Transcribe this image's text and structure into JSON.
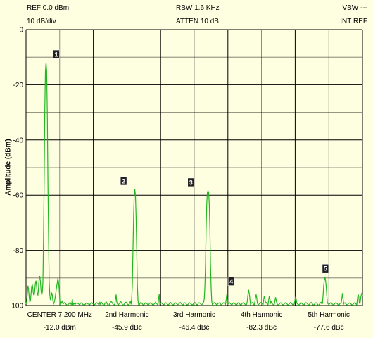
{
  "header": {
    "ref": "REF 0.0 dBm",
    "scale": "10 dB/div",
    "rbw": "RBW 1.6 KHz",
    "atten": "ATTEN 10 dB",
    "vbw": "VBW ---",
    "ref_mode": "INT REF"
  },
  "y_axis_label": "Amplitude (dBm)",
  "footer": [
    {
      "label": "CENTER 7.200 MHz",
      "value": "-12.0 dBm"
    },
    {
      "label": "2nd Harmonic",
      "value": "-45.9 dBc"
    },
    {
      "label": "3rd Harmonic",
      "value": "-46.4 dBc"
    },
    {
      "label": "4th Harmonic",
      "value": "-82.3 dBc"
    },
    {
      "label": "5th Harmonic",
      "value": "-77.6 dBc"
    }
  ],
  "colors": {
    "trace": "#22b722",
    "grid": "#000000",
    "background": "#fefee0",
    "marker_bg": "#222222",
    "marker_fg": "#ffffff"
  },
  "chart_data": {
    "type": "line",
    "ylabel": "Amplitude (dBm)",
    "ylim": [
      -100,
      0
    ],
    "yticks": [
      "0",
      "-20",
      "-40",
      "-60",
      "-80",
      "-100"
    ],
    "x_divisions": 10,
    "markers": [
      {
        "label": "1",
        "x_div": 0.9,
        "y": -12.0
      },
      {
        "label": "2",
        "x_div": 2.9,
        "y": -57.9
      },
      {
        "label": "3",
        "x_div": 4.9,
        "y": -58.4
      },
      {
        "label": "4",
        "x_div": 6.1,
        "y": -94.3
      },
      {
        "label": "5",
        "x_div": 8.9,
        "y": -89.6
      }
    ],
    "series": [
      {
        "values_dbm": [
          -99.5,
          -98.6,
          -95.9,
          -92.8,
          -93.8,
          -96.7,
          -98.7,
          -98.3,
          -95.8,
          -93.1,
          -92.4,
          -94.0,
          -96.0,
          -96.3,
          -94.4,
          -91.9,
          -91.0,
          -93.1,
          -96.1,
          -96.2,
          -93.4,
          -90.1,
          -89.3,
          -91.3,
          -94.4,
          -96.1,
          -95.2,
          -91.6,
          -75.0,
          -55.0,
          -30.0,
          -15.0,
          -12.0,
          -15.0,
          -30.0,
          -55.0,
          -75.0,
          -91.5,
          -96.0,
          -98.0,
          -96.9,
          -95.3,
          -96.2,
          -98.3,
          -99.4,
          -98.9,
          -97.8,
          -96.5,
          -94.7,
          -93.0,
          -91.7,
          -90.0,
          -91.5,
          -94.0,
          -98.0,
          -99.8,
          -99.3,
          -98.7,
          -98.6,
          -99.3,
          -99.3,
          -99.0,
          -98.9,
          -99.3,
          -99.5,
          -99.7,
          -99.9,
          -99.7,
          -99.5,
          -99.3,
          -99.0,
          -99.0,
          -99.5,
          -99.6,
          -97.5,
          -99.8,
          -99.4,
          -99.2,
          -99.6,
          -99.5,
          -99.1,
          -99.1,
          -99.3,
          -99.2,
          -99.4,
          -99.6,
          -99.7,
          -99.2,
          -99.0,
          -99.1,
          -99.3,
          -99.6,
          -99.8,
          -99.9,
          -99.6,
          -99.5,
          -99.1,
          -99.1,
          -99.2,
          -99.4,
          -99.5,
          -99.6,
          -99.7,
          -99.3,
          -99.1,
          -99.0,
          -99.1,
          -99.4,
          -99.6,
          -99.7,
          -99.6,
          -99.4,
          -99.1,
          -99.0,
          -99.1,
          -99.4,
          -99.5,
          -99.7,
          -98.7,
          -99.5,
          -99.2,
          -98.9,
          -99.3,
          -99.6,
          -99.8,
          -99.8,
          -99.3,
          -99.1,
          -98.6,
          -99.0,
          -99.4,
          -99.8,
          -99.9,
          -99.7,
          -99.2,
          -98.8,
          -98.6,
          -98.7,
          -99.1,
          -99.5,
          -99.8,
          -99.8,
          -99.5,
          -97.7,
          -96.0,
          -98.6,
          -99.3,
          -99.7,
          -99.7,
          -99.3,
          -99.0,
          -98.6,
          -98.7,
          -99.2,
          -99.5,
          -99.9,
          -99.8,
          -99.5,
          -99.1,
          -98.9,
          -98.8,
          -99.1,
          -99.5,
          -99.6,
          -99.8,
          -99.5,
          -99.1,
          -98.3,
          -99.6,
          -97.3,
          -92.4,
          -80.0,
          -68.0,
          -60.0,
          -57.9,
          -60.0,
          -68.0,
          -80.0,
          -92.5,
          -98.0,
          -99.7,
          -99.8,
          -99.4,
          -99.0,
          -98.9,
          -99.1,
          -99.4,
          -99.7,
          -99.8,
          -99.6,
          -99.3,
          -99.0,
          -99.0,
          -99.2,
          -99.5,
          -99.7,
          -99.7,
          -99.4,
          -99.1,
          -99.0,
          -99.1,
          -99.3,
          -99.6,
          -99.8,
          -99.7,
          -99.4,
          -99.2,
          -98.8,
          -99.2,
          -99.3,
          -99.6,
          -99.7,
          -97.6,
          -95.8,
          -99.6,
          -99.2,
          -99.0,
          -99.1,
          -99.4,
          -99.6,
          -99.7,
          -99.6,
          -99.3,
          -99.0,
          -99.0,
          -99.2,
          -99.5,
          -99.7,
          -99.7,
          -99.4,
          -99.1,
          -98.9,
          -99.1,
          -99.4,
          -99.6,
          -99.8,
          -99.7,
          -99.3,
          -99.0,
          -99.0,
          -99.1,
          -99.4,
          -99.6,
          -99.6,
          -99.5,
          -99.3,
          -99.0,
          -98.9,
          -99.2,
          -99.5,
          -99.7,
          -99.8,
          -99.5,
          -99.1,
          -99.0,
          -99.1,
          -99.4,
          -99.7,
          -99.8,
          -99.6,
          -99.3,
          -99.0,
          -99.0,
          -99.2,
          -99.5,
          -99.6,
          -99.8,
          -99.6,
          -99.2,
          -99.1,
          -98.9,
          -99.2,
          -99.4,
          -99.7,
          -99.7,
          -99.5,
          -99.1,
          -99.0,
          -99.1,
          -99.3,
          -99.6,
          -99.6,
          -99.5,
          -99.2,
          -98.8,
          -97.6,
          -93.3,
          -85.0,
          -72.0,
          -63.0,
          -59.0,
          -58.4,
          -59.0,
          -63.0,
          -72.0,
          -85.0,
          -93.5,
          -98.5,
          -99.7,
          -99.4,
          -99.1,
          -99.0,
          -98.9,
          -99.3,
          -99.5,
          -99.8,
          -99.6,
          -99.3,
          -99.1,
          -99.0,
          -99.2,
          -99.4,
          -99.8,
          -99.7,
          -99.4,
          -99.1,
          -99.0,
          -99.1,
          -99.4,
          -99.6,
          -98.0,
          -96.0,
          -97.5,
          -99.4,
          -99.1,
          -98.9,
          -99.1,
          -99.3,
          -99.6,
          -99.7,
          -99.5,
          -99.2,
          -99.0,
          -99.1,
          -99.3,
          -99.6,
          -99.6,
          -99.7,
          -99.4,
          -99.0,
          -99.0,
          -99.2,
          -99.5,
          -99.7,
          -99.8,
          -99.4,
          -99.1,
          -99.0,
          -99.0,
          -99.3,
          -99.5,
          -99.7,
          -99.7,
          -99.5,
          -98.0,
          -95.8,
          -94.3,
          -95.6,
          -97.6,
          -99.6,
          -99.3,
          -99.0,
          -98.9,
          -99.2,
          -99.6,
          -99.7,
          -98.6,
          -97.0,
          -96.0,
          -97.3,
          -99.2,
          -99.6,
          -99.6,
          -99.4,
          -99.2,
          -98.9,
          -99.0,
          -99.3,
          -99.5,
          -99.8,
          -98.0,
          -96.5,
          -97.4,
          -99.1,
          -98.9,
          -99.2,
          -99.5,
          -99.7,
          -98.0,
          -96.6,
          -97.6,
          -99.1,
          -98.6,
          -99.2,
          -99.4,
          -99.6,
          -99.8,
          -99.6,
          -98.4,
          -97.0,
          -98.0,
          -99.2,
          -99.5,
          -99.7,
          -99.8,
          -99.5,
          -99.2,
          -99.0,
          -99.1,
          -99.4,
          -99.6,
          -99.7,
          -99.7,
          -99.4,
          -99.1,
          -99.0,
          -99.1,
          -99.3,
          -99.6,
          -99.8,
          -99.7,
          -99.4,
          -99.1,
          -98.9,
          -99.0,
          -99.3,
          -99.6,
          -99.7,
          -99.7,
          -99.4,
          -98.2,
          -96.8,
          -97.6,
          -99.1,
          -99.4,
          -99.6,
          -99.8,
          -99.6,
          -99.4,
          -99.0,
          -99.0,
          -99.2,
          -99.5,
          -99.6,
          -99.8,
          -99.6,
          -99.2,
          -99.0,
          -99.0,
          -99.1,
          -99.4,
          -99.7,
          -99.8,
          -99.6,
          -99.3,
          -99.1,
          -98.9,
          -99.2,
          -99.4,
          -99.7,
          -99.8,
          -99.6,
          -99.3,
          -99.0,
          -99.0,
          -99.2,
          -99.5,
          -99.8,
          -99.9,
          -99.6,
          -99.3,
          -99.0,
          -98.8,
          -99.4,
          -99.3,
          -96.5,
          -93.0,
          -90.8,
          -89.6,
          -90.8,
          -93.0,
          -96.5,
          -99.0,
          -99.4,
          -99.6,
          -99.5,
          -99.2,
          -99.0,
          -99.1,
          -99.3,
          -99.5,
          -99.7,
          -99.8,
          -99.5,
          -99.2,
          -99.0,
          -99.0,
          -99.2,
          -99.4,
          -99.7,
          -99.8,
          -99.6,
          -99.3,
          -99.1,
          -99.0,
          -97.5,
          -95.5,
          -97.5,
          -99.4,
          -99.1,
          -99.0,
          -99.3,
          -99.5,
          -99.7,
          -99.8,
          -99.5,
          -99.2,
          -99.1,
          -99.0,
          -99.2,
          -99.5,
          -99.7,
          -99.8,
          -99.5,
          -99.3,
          -99.0,
          -99.0,
          -99.2,
          -99.5,
          -99.7,
          -97.5,
          -96.0,
          -96.5,
          -99.0,
          -99.4,
          -97.6,
          -96.2,
          -95.5,
          -96.5
        ]
      }
    ]
  }
}
